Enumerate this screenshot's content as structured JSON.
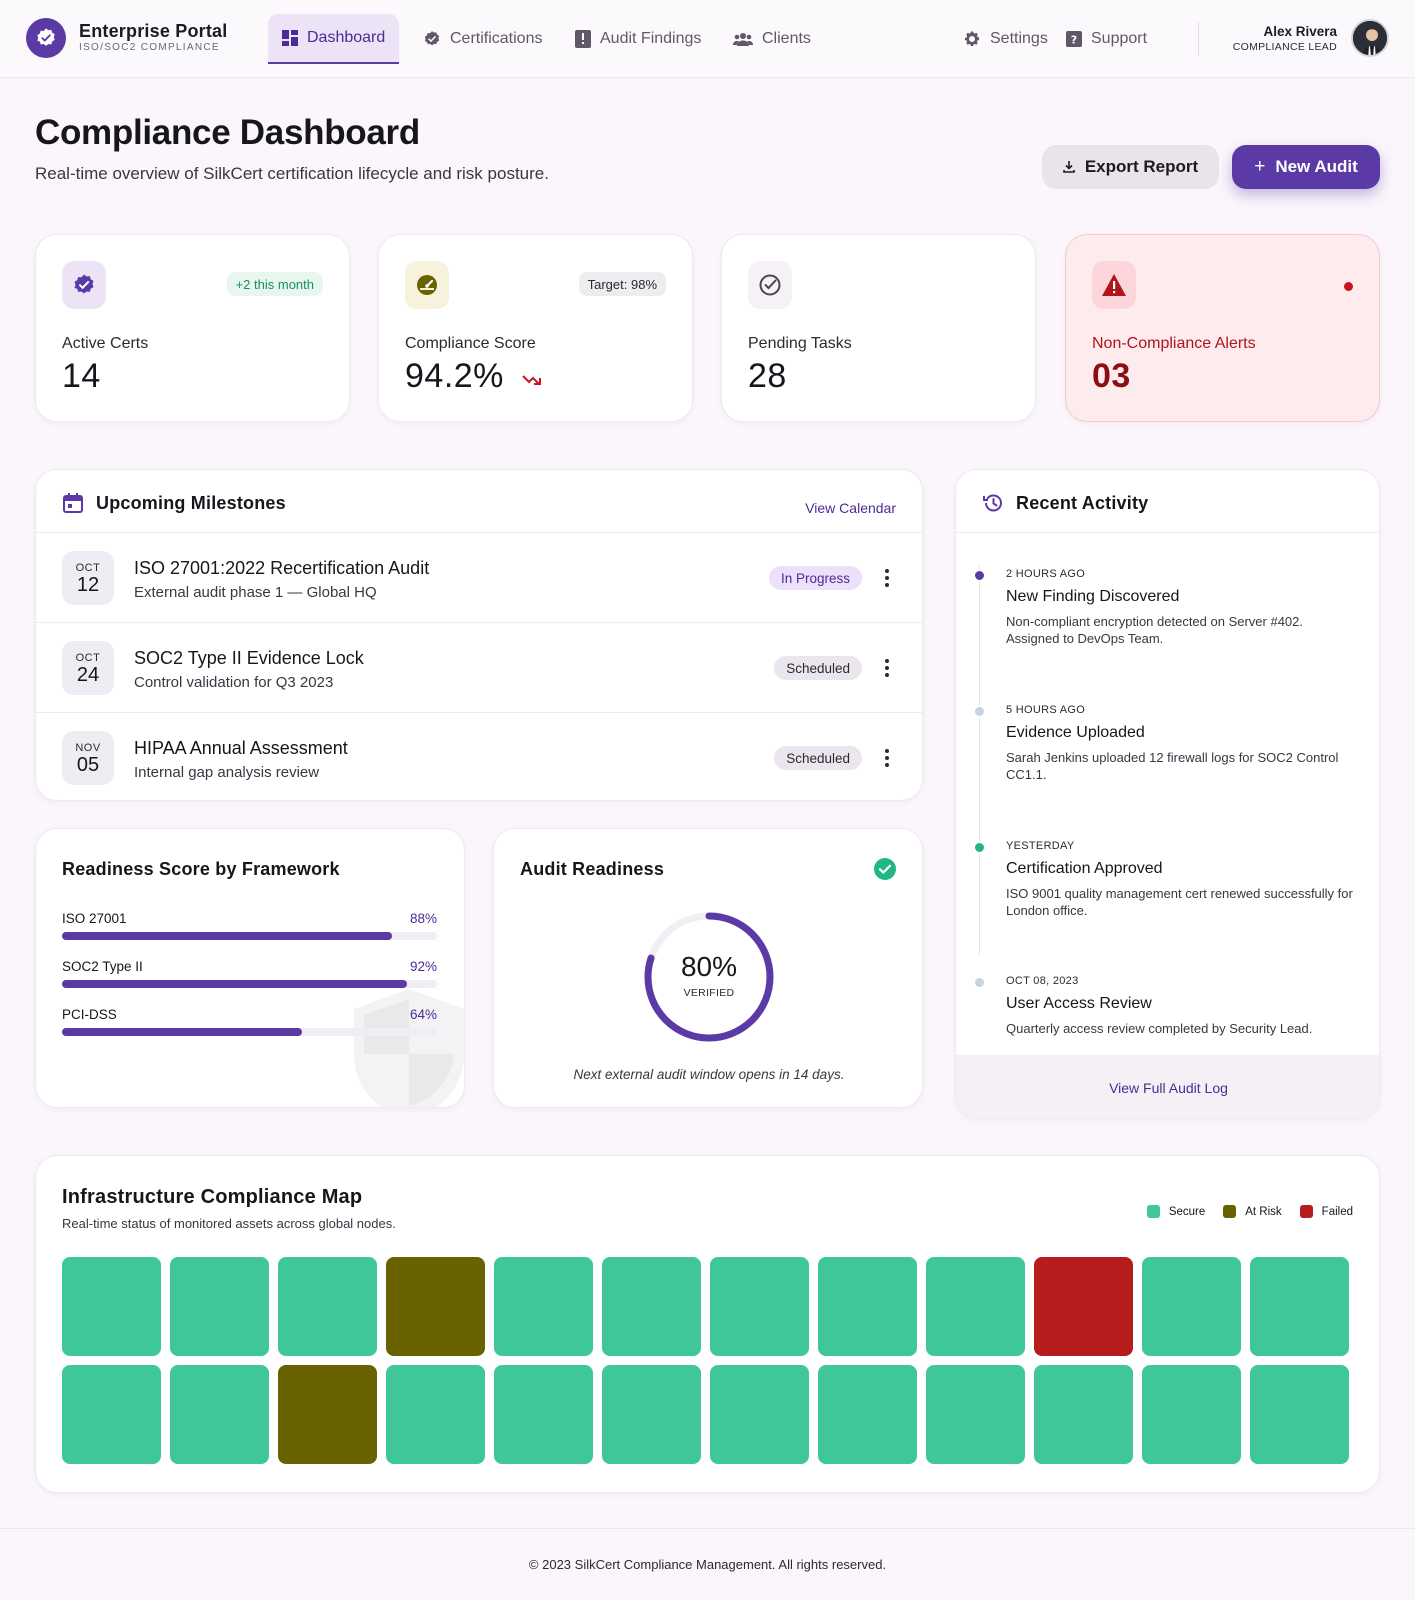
{
  "brand": {
    "title": "Enterprise Portal",
    "subtitle": "ISO/SOC2 COMPLIANCE"
  },
  "nav": {
    "items": [
      {
        "label": "Dashboard",
        "icon": "dashboard-icon",
        "active": true
      },
      {
        "label": "Certifications",
        "icon": "verified-badge-icon"
      },
      {
        "label": "Audit Findings",
        "icon": "report-icon"
      },
      {
        "label": "Clients",
        "icon": "people-icon"
      }
    ],
    "settings_label": "Settings",
    "support_label": "Support"
  },
  "user": {
    "name": "Alex Rivera",
    "role": "COMPLIANCE LEAD"
  },
  "header": {
    "title": "Compliance Dashboard",
    "subtitle": "Real-time overview of SilkCert certification lifecycle and risk posture.",
    "export_label": "Export Report",
    "new_audit_label": "New Audit"
  },
  "stats": [
    {
      "label": "Active Certs",
      "value": "14",
      "badge": "+2 this month",
      "icon": "verified-badge-icon"
    },
    {
      "label": "Compliance Score",
      "value": "94.2%",
      "badge": "Target: 98%",
      "icon": "speedometer-icon",
      "trend": "down"
    },
    {
      "label": "Pending Tasks",
      "value": "28",
      "icon": "check-circle-icon"
    },
    {
      "label": "Non-Compliance Alerts",
      "value": "03",
      "icon": "warning-icon"
    }
  ],
  "milestones": {
    "title": "Upcoming Milestones",
    "link": "View Calendar",
    "items": [
      {
        "month": "OCT",
        "day": "12",
        "title": "ISO 27001:2022 Recertification Audit",
        "subtitle": "External audit phase 1 — Global HQ",
        "status": "In Progress"
      },
      {
        "month": "OCT",
        "day": "24",
        "title": "SOC2 Type II Evidence Lock",
        "subtitle": "Control validation for Q3 2023",
        "status": "Scheduled"
      },
      {
        "month": "NOV",
        "day": "05",
        "title": "HIPAA Annual Assessment",
        "subtitle": "Internal gap analysis review",
        "status": "Scheduled"
      }
    ]
  },
  "activity": {
    "title": "Recent Activity",
    "footer_link": "View Full Audit Log",
    "items": [
      {
        "time": "2 HOURS AGO",
        "title": "New Finding Discovered",
        "desc": "Non-compliant encryption detected on Server #402. Assigned to DevOps Team.",
        "color": "#5b3aa6"
      },
      {
        "time": "5 HOURS AGO",
        "title": "Evidence Uploaded",
        "desc": "Sarah Jenkins uploaded 12 firewall logs for SOC2 Control CC1.1.",
        "color": "#c9d2df"
      },
      {
        "time": "YESTERDAY",
        "title": "Certification Approved",
        "desc": "ISO 9001 quality management cert renewed successfully for London office.",
        "color": "#1fb884"
      },
      {
        "time": "OCT 08, 2023",
        "title": "User Access Review",
        "desc": "Quarterly access review completed by Security Lead.",
        "color": "#c9d2df"
      }
    ]
  },
  "readiness": {
    "title": "Readiness Score by Framework",
    "frameworks": [
      {
        "name": "ISO 27001",
        "pct_label": "88%",
        "value": 0.88
      },
      {
        "name": "SOC2 Type II",
        "pct_label": "92%",
        "value": 0.92
      },
      {
        "name": "PCI-DSS",
        "pct_label": "64%",
        "value": 0.64
      }
    ]
  },
  "audit_readiness": {
    "title": "Audit Readiness",
    "pct_label": "80%",
    "value": 0.8,
    "sub_label": "VERIFIED",
    "note": "Next external audit window opens in 14 days."
  },
  "infra_map": {
    "title": "Infrastructure Compliance Map",
    "subtitle": "Real-time status of monitored assets across global nodes.",
    "legend": [
      {
        "label": "Secure",
        "color": "#3fc79a"
      },
      {
        "label": "At Risk",
        "color": "#686300"
      },
      {
        "label": "Failed",
        "color": "#b71c1c"
      }
    ],
    "tiles": [
      "Secure",
      "Secure",
      "Secure",
      "At Risk",
      "Secure",
      "Secure",
      "Secure",
      "Secure",
      "Secure",
      "Failed",
      "Secure",
      "Secure",
      "Secure",
      "Secure",
      "At Risk",
      "Secure",
      "Secure",
      "Secure",
      "Secure",
      "Secure",
      "Secure",
      "Secure",
      "Secure",
      "Secure"
    ]
  },
  "footer": {
    "text": "© 2023 SilkCert Compliance Management. All rights reserved."
  },
  "colors": {
    "primary": "#5b3aa6",
    "secure": "#3fc79a",
    "at_risk": "#686300",
    "failed": "#b71c1c",
    "alert": "#c8141e"
  }
}
